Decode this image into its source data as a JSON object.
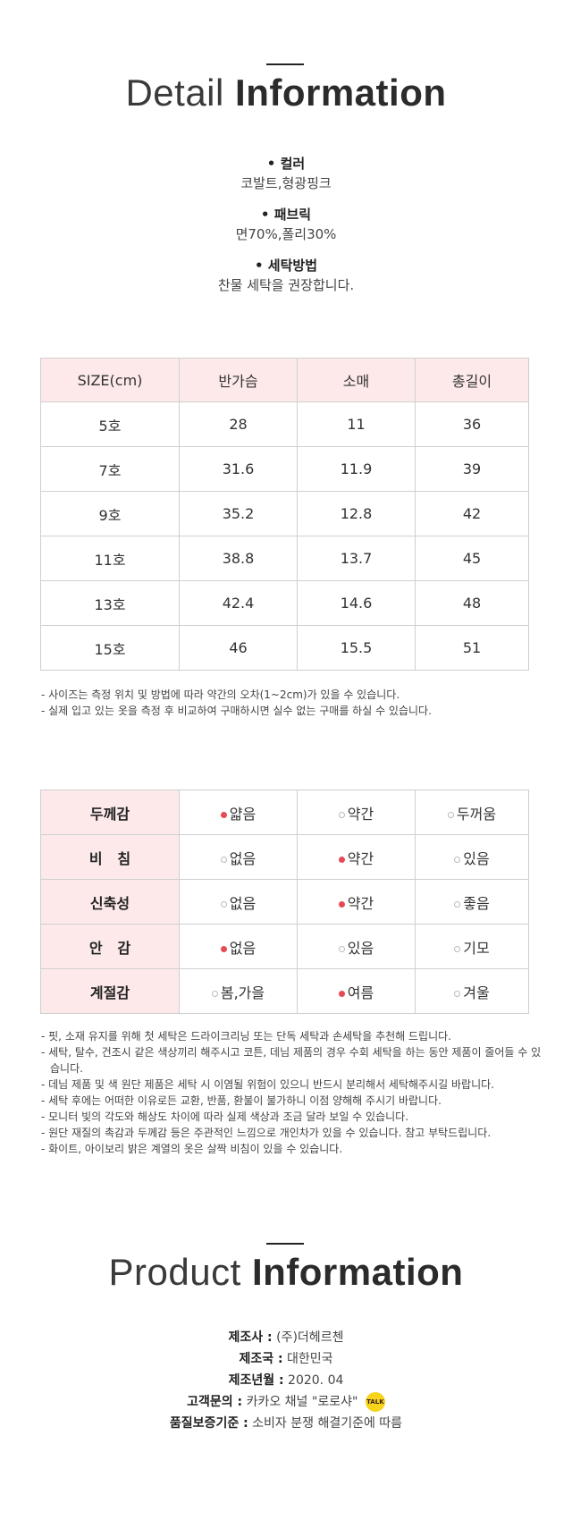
{
  "detail_header": {
    "light": "Detail",
    "bold": "Information"
  },
  "details": [
    {
      "label": "• 컬러",
      "value": "코발트,형광핑크"
    },
    {
      "label": "• 패브릭",
      "value": "면70%,폴리30%"
    },
    {
      "label": "• 세탁방법",
      "value": "찬물 세탁을 권장합니다."
    }
  ],
  "size_table": {
    "headers": [
      "SIZE(cm)",
      "반가슴",
      "소매",
      "총길이"
    ],
    "rows": [
      [
        "5호",
        "28",
        "11",
        "36"
      ],
      [
        "7호",
        "31.6",
        "11.9",
        "39"
      ],
      [
        "9호",
        "35.2",
        "12.8",
        "42"
      ],
      [
        "11호",
        "38.8",
        "13.7",
        "45"
      ],
      [
        "13호",
        "42.4",
        "14.6",
        "48"
      ],
      [
        "15호",
        "46",
        "15.5",
        "51"
      ]
    ]
  },
  "size_notes": [
    "- 사이즈는 측정 위치 및 방법에 따라 약간의 오차(1~2cm)가 있을 수 있습니다.",
    "- 실제 입고 있는 옷을 측정 후 비교하여 구매하시면 실수 없는 구매를 하실 수 있습니다."
  ],
  "feel_table": {
    "rows": [
      {
        "label": "두께감",
        "options": [
          "얇음",
          "약간",
          "두꺼움"
        ]
      },
      {
        "label": "비   침",
        "options": [
          "없음",
          "약간",
          "있음"
        ]
      },
      {
        "label": "신축성",
        "options": [
          "없음",
          "약간",
          "좋음"
        ]
      },
      {
        "label": "안   감",
        "options": [
          "없음",
          "있음",
          "기모"
        ]
      },
      {
        "label": "계절감",
        "options": [
          "봄,가을",
          "여름",
          "겨울"
        ]
      }
    ]
  },
  "care_notes": [
    "- 핏, 소재 유지를 위해 첫 세탁은 드라이크리닝 또는 단독 세탁과 손세탁을 추천해 드립니다.",
    "- 세탁, 탈수, 건조시 같은 색상끼리 해주시고 코튼, 데님 제품의 경우 수회 세탁을 하는 동안 제품이 줄어들 수 있습니다.",
    "- 데님 제품 및 색 원단 제품은 세탁 시 이염될 위험이 있으니 반드시 분리해서 세탁해주시길 바랍니다.",
    "- 세탁 후에는 어떠한 이유로든 교환, 반품, 환불이 불가하니 이점 양해해 주시기 바랍니다.",
    "- 모니터 빛의 각도와 해상도 차이에 따라 실제 색상과 조금 달라 보일 수 있습니다.",
    "- 원단 재질의 촉감과 두께감 등은 주관적인 느낌으로 개인차가 있을 수 있습니다. 참고 부탁드립니다.",
    "- 화이트, 아이보리 밝은 계열의 옷은 살짝 비침이 있을 수 있습니다."
  ],
  "product_header": {
    "light": "Product",
    "bold": "Information"
  },
  "product_info": [
    {
      "key": "제조사 :",
      "value": "(주)더헤르첸"
    },
    {
      "key": "제조국 :",
      "value": "대한민국"
    },
    {
      "key": "제조년월 :",
      "value": "2020. 04"
    },
    {
      "key": "고객문의 :",
      "value": "카카오 채널 \"로로샤\""
    },
    {
      "key": "품질보증기준 :",
      "value": "소비자 분쟁 해결기준에 따름"
    }
  ],
  "kakao_icon_text": "TALK",
  "accent_color": "#e64a55",
  "table_head_bg": "#fde9ea"
}
